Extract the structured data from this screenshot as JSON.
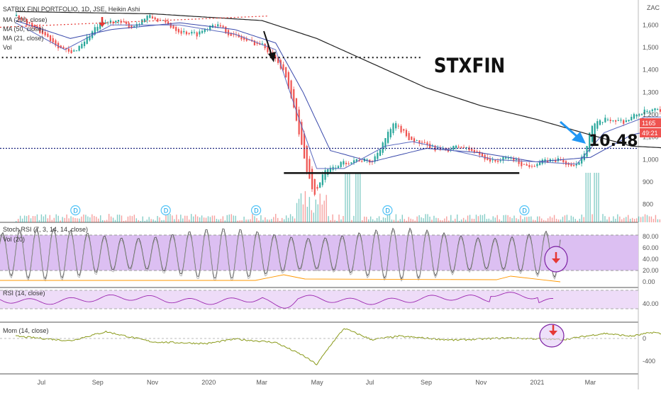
{
  "header": {
    "symbol_line": "SATRIX FINI PORTFOLIO, 1D, JSE, Heikin Ashi",
    "ma200": "MA (200, close)",
    "ma50": "MA (50, close)",
    "ma21": "MA (21, close)",
    "vol": "Vol"
  },
  "currency": "ZAC",
  "price_badge": "1165",
  "time_badge": "49:21",
  "annotations": {
    "ticker": "STXFIN",
    "target": "10.48"
  },
  "pane_labels": {
    "stoch": "Stoch RSI (7, 3, 14, 14, close)",
    "vol20": "Vol (20)",
    "rsi": "RSI (14, close)",
    "mom": "Mom (14, close)"
  },
  "dividend_marker": "D",
  "colors": {
    "up": "#26a69a",
    "down": "#ef5350",
    "ma200": "#222222",
    "ma50": "#3949ab",
    "ma21": "#5c6bc0",
    "stoch_band": "#d9b8f0",
    "rsi_band": "#e8d3f5",
    "rsi_line": "#9c27b0",
    "mom_line": "#8a9a1a",
    "annotation_arrow": "#e53935",
    "target_arrow": "#2196f3"
  },
  "chart_data": [
    {
      "type": "candlestick",
      "name": "price",
      "x_ticks": [
        "Jul",
        "Sep",
        "Nov",
        "2020",
        "Mar",
        "May",
        "Jul",
        "Sep",
        "Nov",
        "2021",
        "Mar"
      ],
      "y_ticks": [
        800,
        900,
        1000,
        1100,
        1200,
        1300,
        1400,
        1500,
        1600
      ],
      "ylim": [
        720,
        1680
      ],
      "support_level": 940,
      "dotted_levels": [
        1455,
        1050
      ],
      "last_price": 1165,
      "dividend_months": [
        1.2,
        4.5,
        7.8,
        12.6,
        17.6
      ],
      "price_path": [
        [
          0,
          1640
        ],
        [
          0.5,
          1600
        ],
        [
          1,
          1560
        ],
        [
          1.6,
          1500
        ],
        [
          2.0,
          1470
        ],
        [
          2.4,
          1520
        ],
        [
          3.0,
          1600
        ],
        [
          3.6,
          1620
        ],
        [
          4.2,
          1590
        ],
        [
          4.8,
          1640
        ],
        [
          5.4,
          1610
        ],
        [
          6.0,
          1570
        ],
        [
          6.6,
          1560
        ],
        [
          7.2,
          1610
        ],
        [
          7.8,
          1560
        ],
        [
          8.4,
          1530
        ],
        [
          9.0,
          1510
        ],
        [
          9.4,
          1460
        ],
        [
          9.8,
          1380
        ],
        [
          10.2,
          1200
        ],
        [
          10.6,
          950
        ],
        [
          10.9,
          840
        ],
        [
          11.2,
          940
        ],
        [
          11.8,
          980
        ],
        [
          12.4,
          1000
        ],
        [
          13.0,
          990
        ],
        [
          13.4,
          1080
        ],
        [
          13.8,
          1160
        ],
        [
          14.4,
          1090
        ],
        [
          15.0,
          1060
        ],
        [
          15.6,
          1040
        ],
        [
          16.2,
          1060
        ],
        [
          16.8,
          1030
        ],
        [
          17.4,
          990
        ],
        [
          18.0,
          1010
        ],
        [
          18.6,
          970
        ],
        [
          19.2,
          990
        ],
        [
          19.8,
          1000
        ],
        [
          20.4,
          960
        ],
        [
          20.8,
          1050
        ],
        [
          21.0,
          1150
        ],
        [
          21.6,
          1180
        ],
        [
          22.2,
          1170
        ],
        [
          22.8,
          1210
        ],
        [
          23.4,
          1220
        ],
        [
          23.9,
          1165
        ]
      ],
      "ma200_path": [
        [
          0,
          1660
        ],
        [
          5,
          1650
        ],
        [
          9,
          1620
        ],
        [
          11,
          1540
        ],
        [
          13,
          1430
        ],
        [
          15,
          1320
        ],
        [
          17,
          1240
        ],
        [
          19,
          1180
        ],
        [
          21,
          1110
        ],
        [
          22.5,
          1060
        ],
        [
          24,
          1050
        ]
      ],
      "ma50_path": [
        [
          0,
          1620
        ],
        [
          2,
          1540
        ],
        [
          3.5,
          1580
        ],
        [
          6,
          1610
        ],
        [
          8,
          1580
        ],
        [
          9.5,
          1520
        ],
        [
          10.5,
          1300
        ],
        [
          11.5,
          1040
        ],
        [
          13,
          990
        ],
        [
          15,
          1050
        ],
        [
          17,
          1030
        ],
        [
          19,
          990
        ],
        [
          21,
          1010
        ],
        [
          22.5,
          1110
        ],
        [
          24,
          1150
        ]
      ],
      "ma21_path": [
        [
          0,
          1610
        ],
        [
          1.8,
          1490
        ],
        [
          3.5,
          1600
        ],
        [
          6,
          1600
        ],
        [
          8,
          1560
        ],
        [
          9.5,
          1490
        ],
        [
          10.3,
          1200
        ],
        [
          11.0,
          960
        ],
        [
          12,
          960
        ],
        [
          13.5,
          1060
        ],
        [
          14.5,
          1080
        ],
        [
          16,
          1040
        ],
        [
          17.5,
          1000
        ],
        [
          19,
          990
        ],
        [
          20.5,
          980
        ],
        [
          21.5,
          1120
        ],
        [
          23,
          1190
        ],
        [
          24,
          1190
        ]
      ]
    },
    {
      "type": "line",
      "name": "Stoch RSI",
      "y_ticks": [
        0,
        20,
        40,
        60,
        80
      ],
      "band": [
        20,
        80
      ],
      "cycles": 33
    },
    {
      "type": "line",
      "name": "RSI",
      "y_ticks": [
        40
      ],
      "band": [
        30,
        70
      ]
    },
    {
      "type": "line",
      "name": "Mom",
      "y_ticks": [
        0,
        -400
      ],
      "mom_path": [
        [
          0,
          40
        ],
        [
          2,
          -40
        ],
        [
          3.3,
          120
        ],
        [
          5,
          -60
        ],
        [
          7,
          -90
        ],
        [
          8,
          -10
        ],
        [
          9.5,
          -70
        ],
        [
          10.5,
          -300
        ],
        [
          11.0,
          -460
        ],
        [
          11.5,
          -120
        ],
        [
          12.0,
          180
        ],
        [
          13,
          -20
        ],
        [
          14,
          40
        ],
        [
          16,
          -30
        ],
        [
          18,
          10
        ],
        [
          20,
          -20
        ],
        [
          21.5,
          90
        ],
        [
          22.5,
          40
        ],
        [
          23.3,
          110
        ],
        [
          23.8,
          60
        ]
      ]
    }
  ]
}
